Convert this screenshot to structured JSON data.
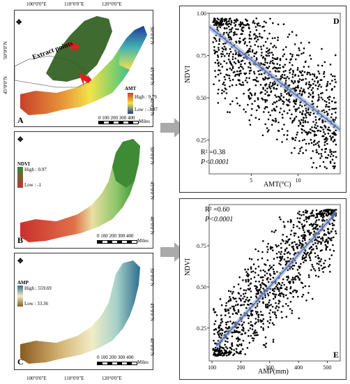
{
  "map_a": {
    "letter": "A",
    "top_ticks": [
      "100°0'0\"E",
      "110°0'0\"E",
      "120°0'0\"E"
    ],
    "side_ticks": [
      "50°0'0\"N",
      "45°0'0\"N",
      "40°0'0\"N"
    ],
    "left_ticks": [
      "50°0'0\"N",
      "45°0'0\"N"
    ],
    "legend_title": "AMT",
    "legend_high": "High : 9.79",
    "legend_low": "Low : -3.87",
    "extract_label": "Extract points",
    "scale_labels": "0   100  200  300  400",
    "scale_unit": "Miles",
    "colors": {
      "high": "#d63b1f",
      "mid": "#f2e84a",
      "low": "#1f3a9e",
      "forest": "#2a5a1a"
    }
  },
  "map_b": {
    "letter": "B",
    "side_ticks": [
      "50°0'0\"N",
      "45°0'0\"N",
      "40°0'0\"N"
    ],
    "legend_title": "NDVI",
    "legend_high": "High : 0.97",
    "legend_low": "Low : -1",
    "scale_labels": "0   100  200  300  400",
    "scale_unit": "Miles",
    "colors": {
      "high": "#2f8a2f",
      "low": "#c9302c"
    }
  },
  "map_c": {
    "letter": "C",
    "bottom_ticks": [
      "100°0'0\"E",
      "110°0'0\"E",
      "120°0'0\"E"
    ],
    "side_ticks": [
      "50°0'0\"N",
      "45°0'0\"N",
      "40°0'0\"N"
    ],
    "legend_title": "AMP",
    "legend_high": "High : 559.69",
    "legend_low": "Low : 33.36",
    "scale_labels": "0   100  200  300  400",
    "scale_unit": "Miles",
    "colors": {
      "high": "#2d6f8f",
      "low": "#8a5a1e"
    }
  },
  "chart_data": [
    {
      "type": "scatter",
      "panel": "D",
      "xlabel": "AMT(°C)",
      "ylabel": "NDVI",
      "xticks": [
        5,
        10
      ],
      "yticks": [
        0.25,
        0.5,
        0.75,
        1.0
      ],
      "xlim": [
        0.5,
        14.5
      ],
      "ylim": [
        0.05,
        1.0
      ],
      "trend": {
        "x": [
          0.5,
          14.5
        ],
        "y": [
          0.92,
          0.31
        ]
      },
      "r2_label": "R² =0.38",
      "p_label": "P<0.0001"
    },
    {
      "type": "scatter",
      "panel": "E",
      "xlabel": "AMP(mm)",
      "ylabel": "NDVI",
      "xticks": [
        100,
        200,
        300,
        400,
        500
      ],
      "yticks": [
        0.25,
        0.5,
        0.75
      ],
      "xlim": [
        90,
        545
      ],
      "ylim": [
        0.05,
        1.0
      ],
      "trend": {
        "x": [
          115,
          530
        ],
        "y": [
          0.14,
          0.95
        ]
      },
      "r2_label": "R² =0.60",
      "p_label": "P<0.0001"
    }
  ],
  "tick_text": {
    "d_y": [
      "1.00",
      "0.75",
      "0.50",
      "0.25"
    ],
    "d_x": [
      "5",
      "10"
    ],
    "e_y": [
      "0.75",
      "0.50",
      "0.25"
    ],
    "e_x": [
      "100",
      "200",
      "300",
      "400",
      "500"
    ]
  }
}
